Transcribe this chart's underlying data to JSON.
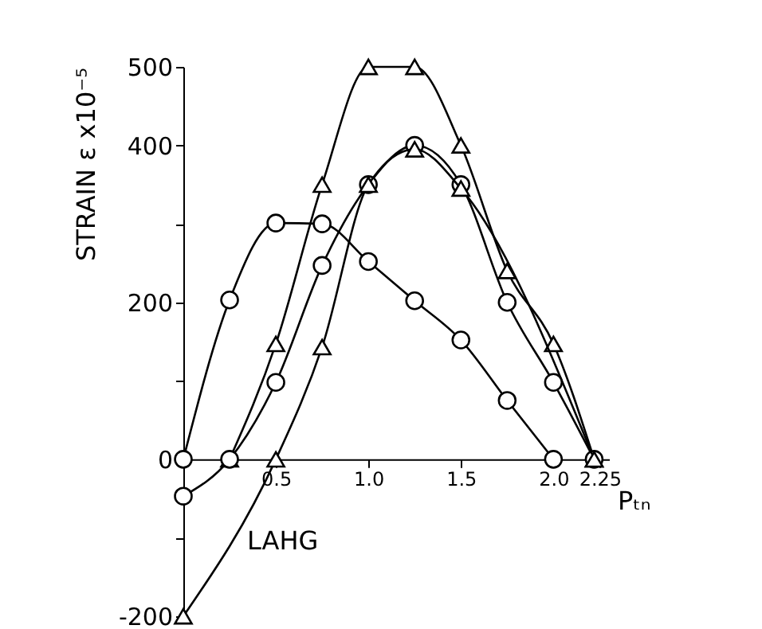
{
  "chart_data": {
    "type": "line",
    "xlabel": "Pₜₙ",
    "ylabel": "STRAIN   ε x10⁻⁵",
    "annotations": [
      "LAHG"
    ],
    "xlim": [
      0,
      2.3
    ],
    "ylim": [
      -200,
      500
    ],
    "xticks": [
      0.5,
      {
        "value": 1,
        "label": "1.0"
      },
      1.5,
      {
        "value": 2,
        "label": "2.0"
      },
      2.25
    ],
    "yticks": [
      -200,
      {
        "value": -100,
        "label": null
      },
      0,
      {
        "value": 100,
        "label": null
      },
      200,
      {
        "value": 300,
        "label": null
      },
      400,
      500
    ],
    "grid": false,
    "line_style": "solid",
    "series": [
      {
        "color": "#000000",
        "marker": "circle",
        "x": [
          0,
          0.25,
          0.5,
          0.75,
          1.0,
          1.25,
          1.5,
          1.75,
          2.0
        ],
        "values": [
          0,
          203,
          301,
          300,
          252,
          202,
          152,
          75,
          0
        ]
      },
      {
        "color": "#000000",
        "marker": "triangle",
        "x": [
          0.25,
          0.5,
          0.75,
          1.0,
          1.25,
          1.5,
          1.75,
          2.0,
          2.22
        ],
        "values": [
          0,
          147,
          350,
          500,
          500,
          400,
          240,
          147,
          0
        ]
      },
      {
        "color": "#000000",
        "marker": "circle",
        "x": [
          0,
          0.25,
          0.5,
          0.75,
          1.0,
          1.25,
          1.5,
          1.75,
          2.0,
          2.22
        ],
        "values": [
          -47,
          0,
          98,
          247,
          350,
          400,
          350,
          200,
          98,
          0
        ]
      },
      {
        "color": "#000000",
        "marker": "triangle",
        "x": [
          0,
          0.5,
          0.75,
          1.0,
          1.25,
          1.5,
          2.22
        ],
        "values": [
          -200,
          0,
          143,
          350,
          395,
          345,
          0
        ]
      }
    ]
  }
}
